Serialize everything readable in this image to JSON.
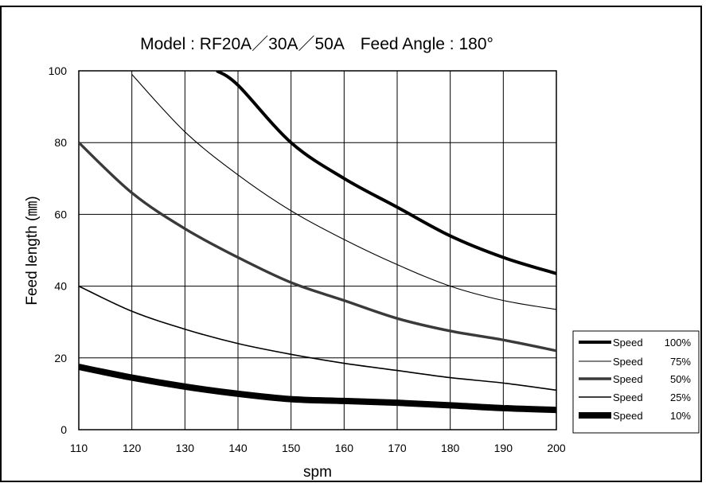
{
  "chart_data": {
    "type": "line",
    "title": "Model : RF20A／30A／50A　Feed Angle : 180°",
    "xlabel": "spm",
    "ylabel": "Feed length (㎜)",
    "xlim": [
      110,
      200
    ],
    "ylim": [
      0,
      100
    ],
    "xticks": [
      "110",
      "120",
      "130",
      "140",
      "150",
      "160",
      "170",
      "180",
      "190",
      "200"
    ],
    "yticks": [
      "0",
      "20",
      "40",
      "60",
      "80",
      "100"
    ],
    "grid": true,
    "legend_position": "right",
    "series": [
      {
        "name": "Speed 100%",
        "x": [
          136,
          140,
          150,
          160,
          170,
          180,
          190,
          200
        ],
        "y": [
          100,
          96,
          80,
          70,
          62,
          54,
          48,
          43.5
        ]
      },
      {
        "name": "Speed 75%",
        "x": [
          120,
          130,
          140,
          150,
          160,
          170,
          180,
          190,
          200
        ],
        "y": [
          99,
          83,
          71,
          61,
          53,
          46,
          40,
          36,
          33.5
        ]
      },
      {
        "name": "Speed 50%",
        "x": [
          110,
          120,
          130,
          140,
          150,
          160,
          170,
          180,
          190,
          200
        ],
        "y": [
          80,
          66,
          56,
          48,
          41,
          36,
          31,
          27.5,
          25,
          22
        ]
      },
      {
        "name": "Speed 25%",
        "x": [
          110,
          120,
          130,
          140,
          150,
          160,
          170,
          180,
          190,
          200
        ],
        "y": [
          40,
          33,
          28,
          24,
          21,
          18.5,
          16.5,
          14.5,
          13,
          11
        ]
      },
      {
        "name": "Speed 10%",
        "x": [
          110,
          120,
          130,
          140,
          150,
          160,
          170,
          180,
          190,
          200
        ],
        "y": [
          17.5,
          14.5,
          12,
          10,
          8.5,
          8,
          7.5,
          6.8,
          6,
          5.5
        ]
      }
    ],
    "legend": [
      {
        "label": "Speed",
        "pct": "100%"
      },
      {
        "label": "Speed",
        "pct": "75%"
      },
      {
        "label": "Speed",
        "pct": "50%"
      },
      {
        "label": "Speed",
        "pct": "25%"
      },
      {
        "label": "Speed",
        "pct": "10%"
      }
    ]
  }
}
